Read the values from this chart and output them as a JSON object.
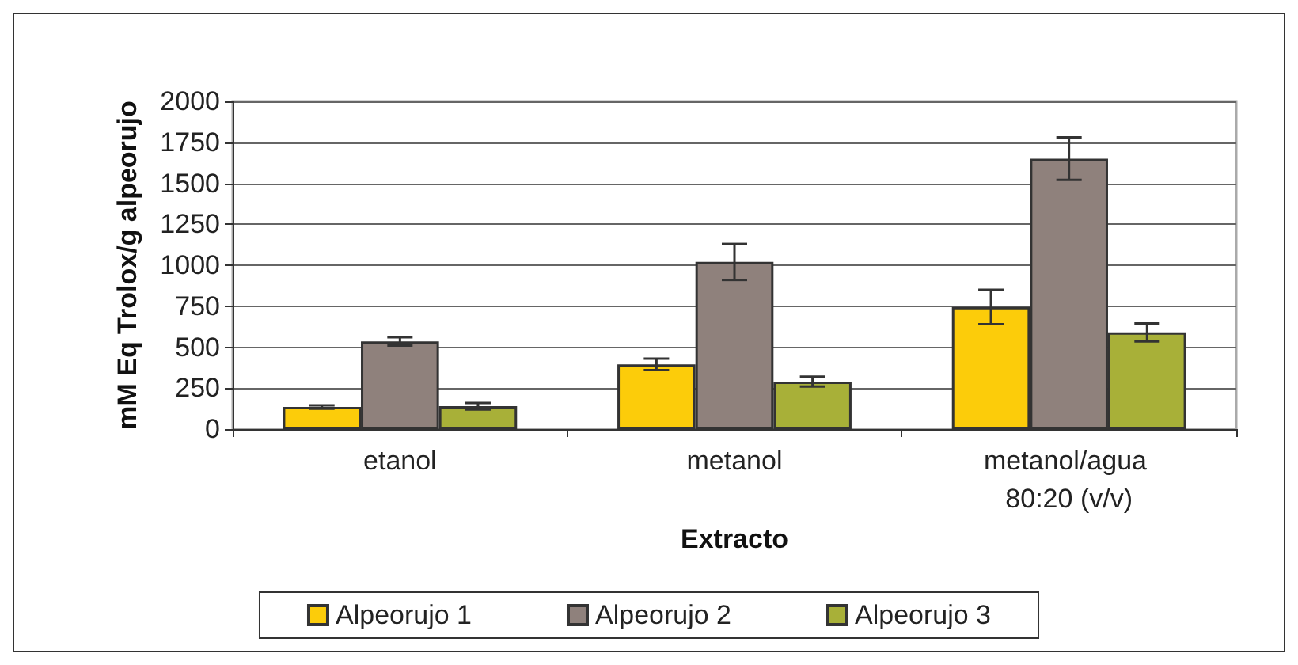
{
  "chart_data": {
    "type": "bar",
    "xlabel": "Extracto",
    "ylabel": "mM Eq Trolox/g alpeorujo",
    "categories": [
      "etanol",
      "metanol",
      "metanol/agua 80:20 (v/v)"
    ],
    "series": [
      {
        "name": "Alpeorujo 1",
        "color": "#fccc0a",
        "values": [
          135,
          395,
          745
        ],
        "errors": [
          10,
          35,
          105
        ]
      },
      {
        "name": "Alpeorujo 2",
        "color": "#8f817c",
        "values": [
          535,
          1020,
          1650
        ],
        "errors": [
          25,
          110,
          130
        ]
      },
      {
        "name": "Alpeorujo 3",
        "color": "#a8b038",
        "values": [
          140,
          290,
          590
        ],
        "errors": [
          20,
          30,
          55
        ]
      }
    ],
    "ylim": [
      0,
      2000
    ],
    "yticks": [
      0,
      250,
      500,
      750,
      1000,
      1250,
      1500,
      1750,
      2000
    ],
    "grid": "y",
    "legend": "bottom"
  }
}
